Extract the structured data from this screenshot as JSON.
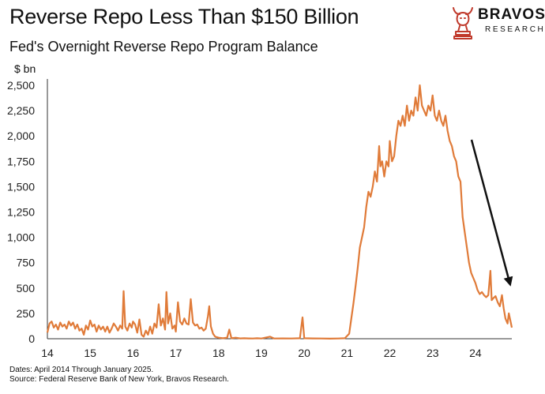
{
  "header": {
    "title": "Reverse Repo Less Than $150 Billion",
    "subtitle": "Fed's Overnight Reverse Repo Program Balance"
  },
  "logo": {
    "name": "BRAVOS",
    "sub": "RESEARCH",
    "icon": "bull-chess-knight-icon",
    "accent_color": "#c0392b"
  },
  "footer": {
    "line1": "Dates: April 2014 Through January 2025.",
    "line2": "Source: Federal Reserve Bank of New York, Bravos Research."
  },
  "chart_data": {
    "type": "line",
    "y_unit_label": "$ bn",
    "line_color": "#e07b39",
    "grid": false,
    "ylim": [
      0,
      2500
    ],
    "xlim": [
      14,
      24.85
    ],
    "y_ticks": [
      "0",
      "250",
      "500",
      "750",
      "1,000",
      "1,250",
      "1,500",
      "1,750",
      "2,000",
      "2,250",
      "2,500"
    ],
    "x_ticks": [
      "14",
      "15",
      "16",
      "17",
      "18",
      "19",
      "20",
      "21",
      "22",
      "23",
      "24"
    ],
    "annotation": "downward-trend-arrow",
    "series": [
      {
        "points": [
          [
            14.0,
            60
          ],
          [
            14.05,
            150
          ],
          [
            14.1,
            170
          ],
          [
            14.15,
            110
          ],
          [
            14.2,
            140
          ],
          [
            14.25,
            90
          ],
          [
            14.3,
            160
          ],
          [
            14.35,
            120
          ],
          [
            14.4,
            140
          ],
          [
            14.45,
            100
          ],
          [
            14.5,
            170
          ],
          [
            14.55,
            130
          ],
          [
            14.6,
            160
          ],
          [
            14.65,
            100
          ],
          [
            14.7,
            140
          ],
          [
            14.75,
            80
          ],
          [
            14.8,
            100
          ],
          [
            14.85,
            40
          ],
          [
            14.9,
            130
          ],
          [
            14.95,
            90
          ],
          [
            15.0,
            180
          ],
          [
            15.05,
            120
          ],
          [
            15.1,
            140
          ],
          [
            15.15,
            70
          ],
          [
            15.2,
            130
          ],
          [
            15.25,
            90
          ],
          [
            15.3,
            120
          ],
          [
            15.35,
            70
          ],
          [
            15.4,
            120
          ],
          [
            15.45,
            60
          ],
          [
            15.5,
            100
          ],
          [
            15.55,
            150
          ],
          [
            15.6,
            120
          ],
          [
            15.65,
            80
          ],
          [
            15.7,
            130
          ],
          [
            15.75,
            100
          ],
          [
            15.78,
            470
          ],
          [
            15.82,
            120
          ],
          [
            15.87,
            80
          ],
          [
            15.92,
            150
          ],
          [
            15.97,
            110
          ],
          [
            16.0,
            170
          ],
          [
            16.05,
            140
          ],
          [
            16.1,
            60
          ],
          [
            16.15,
            190
          ],
          [
            16.2,
            40
          ],
          [
            16.25,
            20
          ],
          [
            16.3,
            80
          ],
          [
            16.35,
            40
          ],
          [
            16.4,
            120
          ],
          [
            16.45,
            50
          ],
          [
            16.5,
            150
          ],
          [
            16.55,
            110
          ],
          [
            16.6,
            340
          ],
          [
            16.65,
            130
          ],
          [
            16.7,
            200
          ],
          [
            16.75,
            90
          ],
          [
            16.78,
            460
          ],
          [
            16.82,
            150
          ],
          [
            16.87,
            250
          ],
          [
            16.92,
            100
          ],
          [
            16.97,
            130
          ],
          [
            17.0,
            70
          ],
          [
            17.05,
            360
          ],
          [
            17.1,
            170
          ],
          [
            17.15,
            140
          ],
          [
            17.2,
            200
          ],
          [
            17.25,
            150
          ],
          [
            17.3,
            140
          ],
          [
            17.35,
            390
          ],
          [
            17.4,
            160
          ],
          [
            17.45,
            130
          ],
          [
            17.5,
            140
          ],
          [
            17.55,
            100
          ],
          [
            17.6,
            110
          ],
          [
            17.65,
            80
          ],
          [
            17.7,
            100
          ],
          [
            17.75,
            220
          ],
          [
            17.78,
            320
          ],
          [
            17.82,
            120
          ],
          [
            17.87,
            50
          ],
          [
            17.92,
            20
          ],
          [
            18.0,
            10
          ],
          [
            18.1,
            5
          ],
          [
            18.2,
            10
          ],
          [
            18.25,
            90
          ],
          [
            18.3,
            5
          ],
          [
            18.4,
            10
          ],
          [
            18.5,
            3
          ],
          [
            18.6,
            5
          ],
          [
            18.7,
            3
          ],
          [
            18.8,
            2
          ],
          [
            18.9,
            5
          ],
          [
            19.0,
            2
          ],
          [
            19.2,
            20
          ],
          [
            19.3,
            2
          ],
          [
            19.5,
            3
          ],
          [
            19.7,
            2
          ],
          [
            19.9,
            5
          ],
          [
            19.96,
            210
          ],
          [
            20.0,
            5
          ],
          [
            20.2,
            3
          ],
          [
            20.4,
            2
          ],
          [
            20.6,
            1
          ],
          [
            20.8,
            2
          ],
          [
            20.95,
            5
          ],
          [
            21.05,
            50
          ],
          [
            21.1,
            200
          ],
          [
            21.15,
            350
          ],
          [
            21.2,
            520
          ],
          [
            21.25,
            700
          ],
          [
            21.3,
            900
          ],
          [
            21.35,
            1000
          ],
          [
            21.4,
            1100
          ],
          [
            21.45,
            1300
          ],
          [
            21.5,
            1450
          ],
          [
            21.55,
            1400
          ],
          [
            21.6,
            1500
          ],
          [
            21.65,
            1650
          ],
          [
            21.7,
            1550
          ],
          [
            21.75,
            1900
          ],
          [
            21.78,
            1700
          ],
          [
            21.82,
            1750
          ],
          [
            21.87,
            1600
          ],
          [
            21.92,
            1750
          ],
          [
            21.97,
            1700
          ],
          [
            22.0,
            1950
          ],
          [
            22.05,
            1750
          ],
          [
            22.1,
            1800
          ],
          [
            22.15,
            2000
          ],
          [
            22.2,
            2150
          ],
          [
            22.25,
            2100
          ],
          [
            22.3,
            2200
          ],
          [
            22.35,
            2100
          ],
          [
            22.4,
            2300
          ],
          [
            22.45,
            2150
          ],
          [
            22.5,
            2250
          ],
          [
            22.55,
            2200
          ],
          [
            22.6,
            2380
          ],
          [
            22.65,
            2250
          ],
          [
            22.7,
            2500
          ],
          [
            22.75,
            2300
          ],
          [
            22.8,
            2250
          ],
          [
            22.85,
            2200
          ],
          [
            22.9,
            2300
          ],
          [
            22.95,
            2250
          ],
          [
            23.0,
            2400
          ],
          [
            23.05,
            2200
          ],
          [
            23.1,
            2150
          ],
          [
            23.15,
            2250
          ],
          [
            23.2,
            2150
          ],
          [
            23.25,
            2100
          ],
          [
            23.3,
            2200
          ],
          [
            23.35,
            2050
          ],
          [
            23.4,
            1950
          ],
          [
            23.45,
            1900
          ],
          [
            23.5,
            1800
          ],
          [
            23.55,
            1750
          ],
          [
            23.6,
            1600
          ],
          [
            23.65,
            1550
          ],
          [
            23.7,
            1200
          ],
          [
            23.75,
            1050
          ],
          [
            23.8,
            900
          ],
          [
            23.85,
            750
          ],
          [
            23.9,
            650
          ],
          [
            23.95,
            600
          ],
          [
            24.0,
            550
          ],
          [
            24.05,
            480
          ],
          [
            24.1,
            440
          ],
          [
            24.15,
            460
          ],
          [
            24.2,
            430
          ],
          [
            24.25,
            410
          ],
          [
            24.3,
            430
          ],
          [
            24.35,
            670
          ],
          [
            24.38,
            380
          ],
          [
            24.42,
            400
          ],
          [
            24.47,
            420
          ],
          [
            24.52,
            360
          ],
          [
            24.57,
            320
          ],
          [
            24.62,
            430
          ],
          [
            24.66,
            300
          ],
          [
            24.7,
            200
          ],
          [
            24.75,
            150
          ],
          [
            24.78,
            250
          ],
          [
            24.82,
            170
          ],
          [
            24.85,
            110
          ]
        ]
      }
    ]
  }
}
